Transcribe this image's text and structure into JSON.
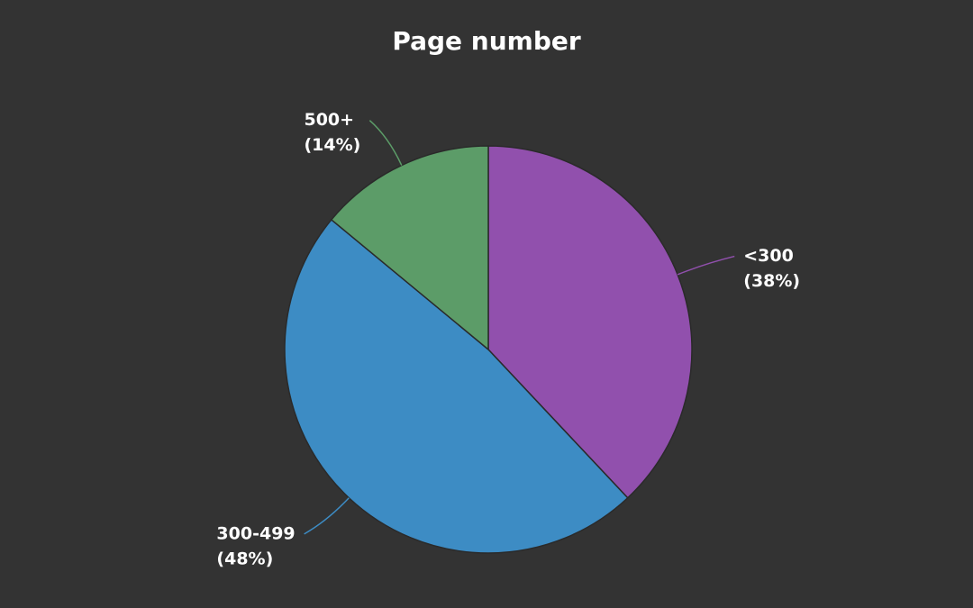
{
  "chart_data": {
    "type": "pie",
    "title": "Page number",
    "categories": [
      "<300",
      "300-499",
      "500+"
    ],
    "values": [
      38,
      48,
      14
    ],
    "value_labels": [
      "(38%)",
      "(48%)",
      "(14%)"
    ],
    "colors": [
      "#9150ad",
      "#3d8cc4",
      "#5c9c68"
    ]
  }
}
